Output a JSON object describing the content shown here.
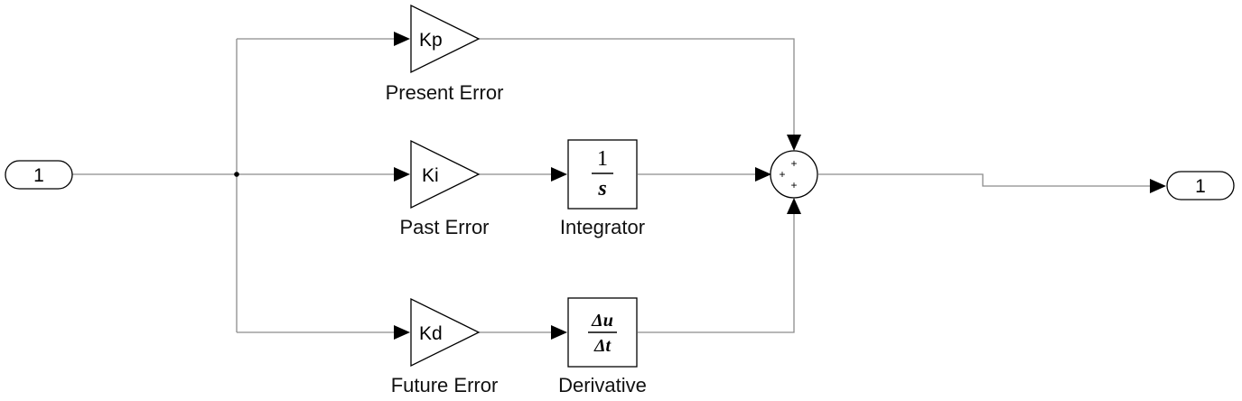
{
  "inport": {
    "label": "1"
  },
  "outport": {
    "label": "1"
  },
  "gains": {
    "kp": {
      "text": "Kp",
      "caption": "Present Error"
    },
    "ki": {
      "text": "Ki",
      "caption": "Past Error"
    },
    "kd": {
      "text": "Kd",
      "caption": "Future Error"
    }
  },
  "integrator": {
    "numerator": "1",
    "denominator": "s",
    "caption": "Integrator"
  },
  "derivative": {
    "numerator": "Δu",
    "denominator": "Δt",
    "caption": "Derivative"
  },
  "sum": {
    "signs": [
      "+",
      "+",
      "+"
    ]
  },
  "colors": {
    "wire": "#8c8c8c",
    "block_border": "#000000",
    "arrow": "#000000"
  }
}
